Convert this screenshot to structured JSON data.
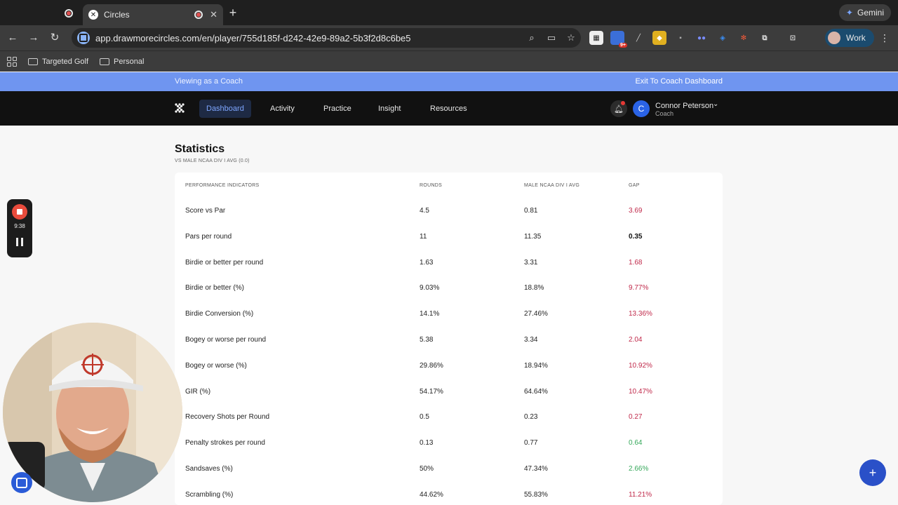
{
  "browser": {
    "active_tab_title": "Circles",
    "url": "app.drawmorecircles.com/en/player/755d185f-d242-42e9-89a2-5b3f2d8c6be5",
    "gemini_label": "Gemini",
    "profile_label": "Work",
    "extension_badge": "9+",
    "bookmarks": [
      "Targeted Golf",
      "Personal"
    ]
  },
  "banner": {
    "viewing": "Viewing as a Coach",
    "exit": "Exit To Coach Dashboard"
  },
  "nav": {
    "items": [
      "Dashboard",
      "Activity",
      "Practice",
      "Insight",
      "Resources"
    ],
    "active": "Dashboard",
    "user_initial": "C",
    "user_name": "Connor Peterson",
    "user_role": "Coach"
  },
  "recorder": {
    "time": "9:38"
  },
  "stats": {
    "title": "Statistics",
    "subtitle": "VS MALE NCAA DIV I AVG (0.0)",
    "headers": [
      "PERFORMANCE INDICATORS",
      "ROUNDS",
      "MALE NCAA DIV I AVG",
      "GAP"
    ],
    "rows": [
      {
        "indicator": "Score vs Par",
        "rounds": "4.5",
        "avg": "0.81",
        "gap": "3.69",
        "gap_status": "red"
      },
      {
        "indicator": "Pars per round",
        "rounds": "11",
        "avg": "11.35",
        "gap": "0.35",
        "gap_status": "black"
      },
      {
        "indicator": "Birdie or better per round",
        "rounds": "1.63",
        "avg": "3.31",
        "gap": "1.68",
        "gap_status": "red"
      },
      {
        "indicator": "Birdie or better (%)",
        "rounds": "9.03%",
        "avg": "18.8%",
        "gap": "9.77%",
        "gap_status": "red"
      },
      {
        "indicator": "Birdie Conversion (%)",
        "rounds": "14.1%",
        "avg": "27.46%",
        "gap": "13.36%",
        "gap_status": "red"
      },
      {
        "indicator": "Bogey or worse per round",
        "rounds": "5.38",
        "avg": "3.34",
        "gap": "2.04",
        "gap_status": "red"
      },
      {
        "indicator": "Bogey or worse (%)",
        "rounds": "29.86%",
        "avg": "18.94%",
        "gap": "10.92%",
        "gap_status": "red"
      },
      {
        "indicator": "GIR (%)",
        "rounds": "54.17%",
        "avg": "64.64%",
        "gap": "10.47%",
        "gap_status": "red"
      },
      {
        "indicator": "Recovery Shots per Round",
        "rounds": "0.5",
        "avg": "0.23",
        "gap": "0.27",
        "gap_status": "red"
      },
      {
        "indicator": "Penalty strokes per round",
        "rounds": "0.13",
        "avg": "0.77",
        "gap": "0.64",
        "gap_status": "green"
      },
      {
        "indicator": "Sandsaves (%)",
        "rounds": "50%",
        "avg": "47.34%",
        "gap": "2.66%",
        "gap_status": "green"
      },
      {
        "indicator": "Scrambling (%)",
        "rounds": "44.62%",
        "avg": "55.83%",
        "gap": "11.21%",
        "gap_status": "red"
      }
    ]
  },
  "colors": {
    "banner": "#6f95f0",
    "gap_red": "#c0294a",
    "gap_green": "#35a85a",
    "fab": "#2a50c8"
  }
}
